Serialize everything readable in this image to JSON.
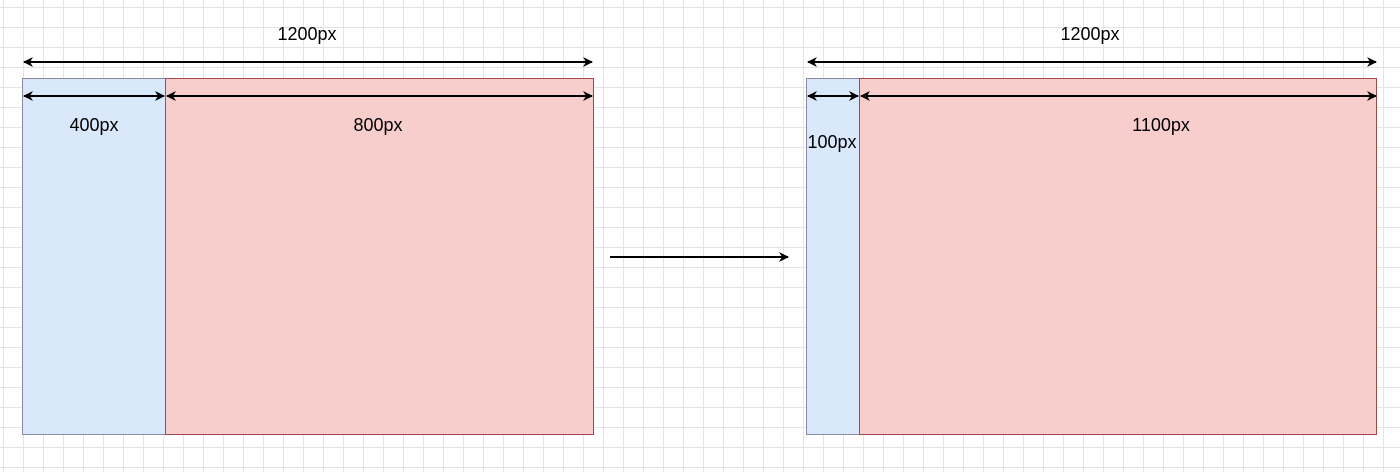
{
  "left_layout": {
    "total_width_label": "1200px",
    "sidebar_width_label": "400px",
    "content_width_label": "800px"
  },
  "right_layout": {
    "total_width_label": "1200px",
    "sidebar_width_label": "100px",
    "content_width_label": "1100px"
  },
  "colors": {
    "sidebar_fill": "#dae8fc",
    "content_fill": "#f8cecc",
    "content_border": "#a24a4a",
    "arrow": "#000000",
    "grid": "#e3e3ec"
  }
}
